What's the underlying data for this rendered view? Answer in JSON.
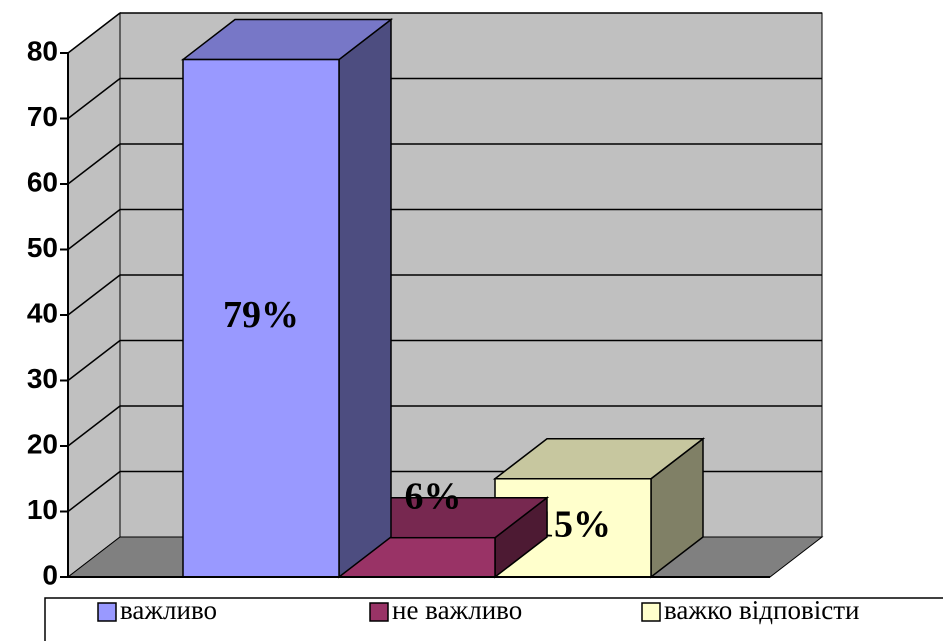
{
  "chart_data": {
    "type": "bar3d",
    "series": [
      {
        "name": "важливо",
        "color": "#9999ff",
        "values": [
          79
        ],
        "value_labels": [
          "79%"
        ]
      },
      {
        "name": "не важливо",
        "color": "#993366",
        "values": [
          6
        ],
        "value_labels": [
          "6%"
        ]
      },
      {
        "name": "важко відповісти",
        "color": "#ffffcc",
        "values": [
          15
        ],
        "value_labels": [
          "15%"
        ]
      }
    ],
    "ylim": [
      0,
      80
    ],
    "yticks": [
      0,
      10,
      20,
      30,
      40,
      50,
      60,
      70,
      80
    ],
    "grid": true,
    "legend": "bottom"
  }
}
